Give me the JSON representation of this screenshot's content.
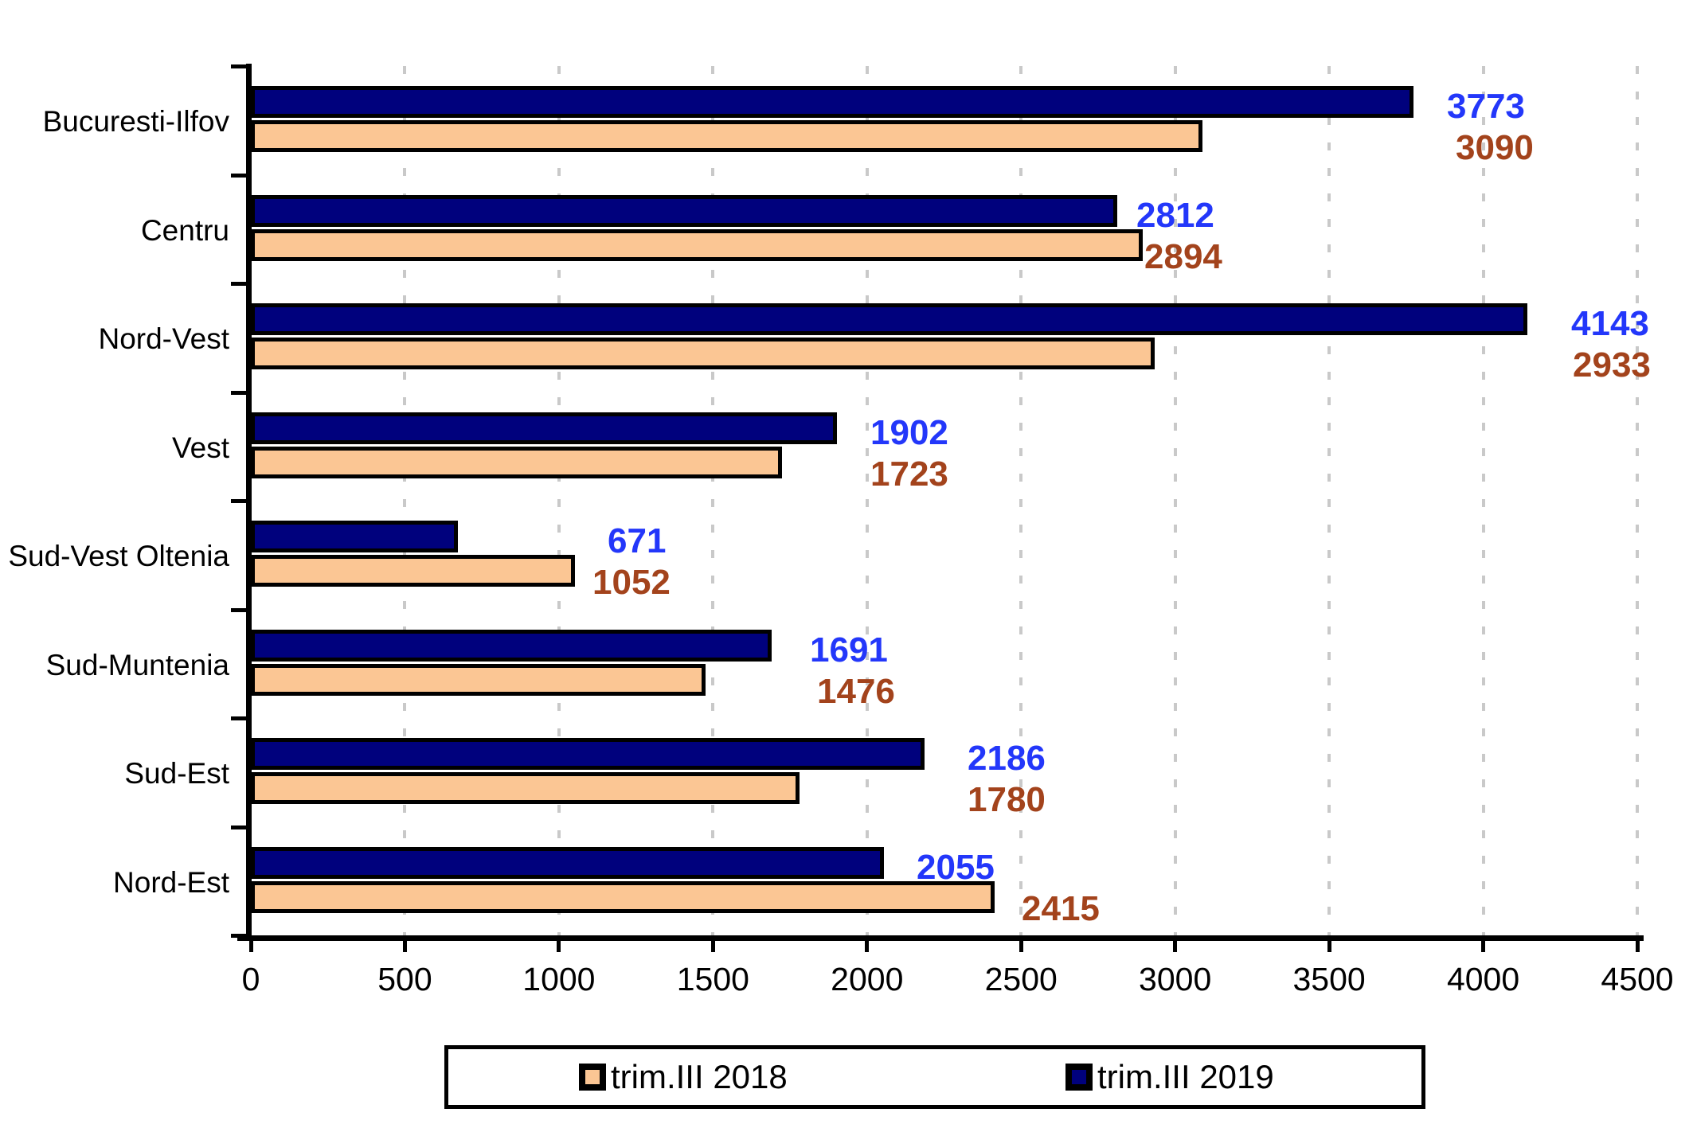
{
  "chart_data": {
    "type": "bar",
    "orientation": "horizontal",
    "title": "",
    "xlabel": "",
    "ylabel": "",
    "categories": [
      "Bucuresti-Ilfov",
      "Centru",
      "Nord-Vest",
      "Vest",
      "Sud-Vest Oltenia",
      "Sud-Muntenia",
      "Sud-Est",
      "Nord-Est"
    ],
    "series": [
      {
        "name": "trim.III 2018",
        "color": "#FBC694",
        "label_color": "#A3431C",
        "values": [
          3090,
          2894,
          2933,
          1723,
          1052,
          1476,
          1780,
          2415
        ]
      },
      {
        "name": "trim.III 2019",
        "color": "#00017D",
        "label_color": "#2337FA",
        "values": [
          3773,
          2812,
          4143,
          1902,
          671,
          1691,
          2186,
          2055
        ]
      }
    ],
    "xlim": [
      0,
      4500
    ],
    "x_ticks": [
      0,
      500,
      1000,
      1500,
      2000,
      2500,
      3000,
      3500,
      4000,
      4500
    ],
    "grid": "vertical-dashed",
    "gridline_color": "#c9c9c9",
    "bar_border_color": "#000000",
    "legend_position": "bottom"
  }
}
